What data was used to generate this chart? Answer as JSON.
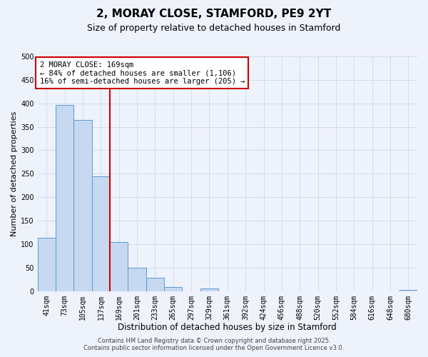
{
  "title": "2, MORAY CLOSE, STAMFORD, PE9 2YT",
  "subtitle": "Size of property relative to detached houses in Stamford",
  "xlabel": "Distribution of detached houses by size in Stamford",
  "ylabel": "Number of detached properties",
  "categories": [
    "41sqm",
    "73sqm",
    "105sqm",
    "137sqm",
    "169sqm",
    "201sqm",
    "233sqm",
    "265sqm",
    "297sqm",
    "329sqm",
    "361sqm",
    "392sqm",
    "424sqm",
    "456sqm",
    "488sqm",
    "520sqm",
    "552sqm",
    "584sqm",
    "616sqm",
    "648sqm",
    "680sqm"
  ],
  "values": [
    113,
    397,
    364,
    245,
    105,
    50,
    29,
    8,
    0,
    5,
    0,
    0,
    0,
    0,
    0,
    0,
    0,
    0,
    0,
    0,
    3
  ],
  "bar_color": "#c6d9f0",
  "bar_edge_color": "#5b9bd5",
  "vline_x": 4,
  "vline_color": "#cc0000",
  "annotation_line1": "2 MORAY CLOSE: 169sqm",
  "annotation_line2": "← 84% of detached houses are smaller (1,106)",
  "annotation_line3": "16% of semi-detached houses are larger (205) →",
  "annotation_box_color": "#ffffff",
  "annotation_box_edge": "#cc0000",
  "ylim": [
    0,
    500
  ],
  "yticks": [
    0,
    50,
    100,
    150,
    200,
    250,
    300,
    350,
    400,
    450,
    500
  ],
  "grid_color": "#ccddf0",
  "background_color": "#eef2fb",
  "footer_line1": "Contains HM Land Registry data © Crown copyright and database right 2025.",
  "footer_line2": "Contains public sector information licensed under the Open Government Licence v3.0.",
  "title_fontsize": 11,
  "subtitle_fontsize": 9,
  "xlabel_fontsize": 8.5,
  "ylabel_fontsize": 8,
  "tick_fontsize": 7,
  "annotation_fontsize": 7.5,
  "footer_fontsize": 6
}
